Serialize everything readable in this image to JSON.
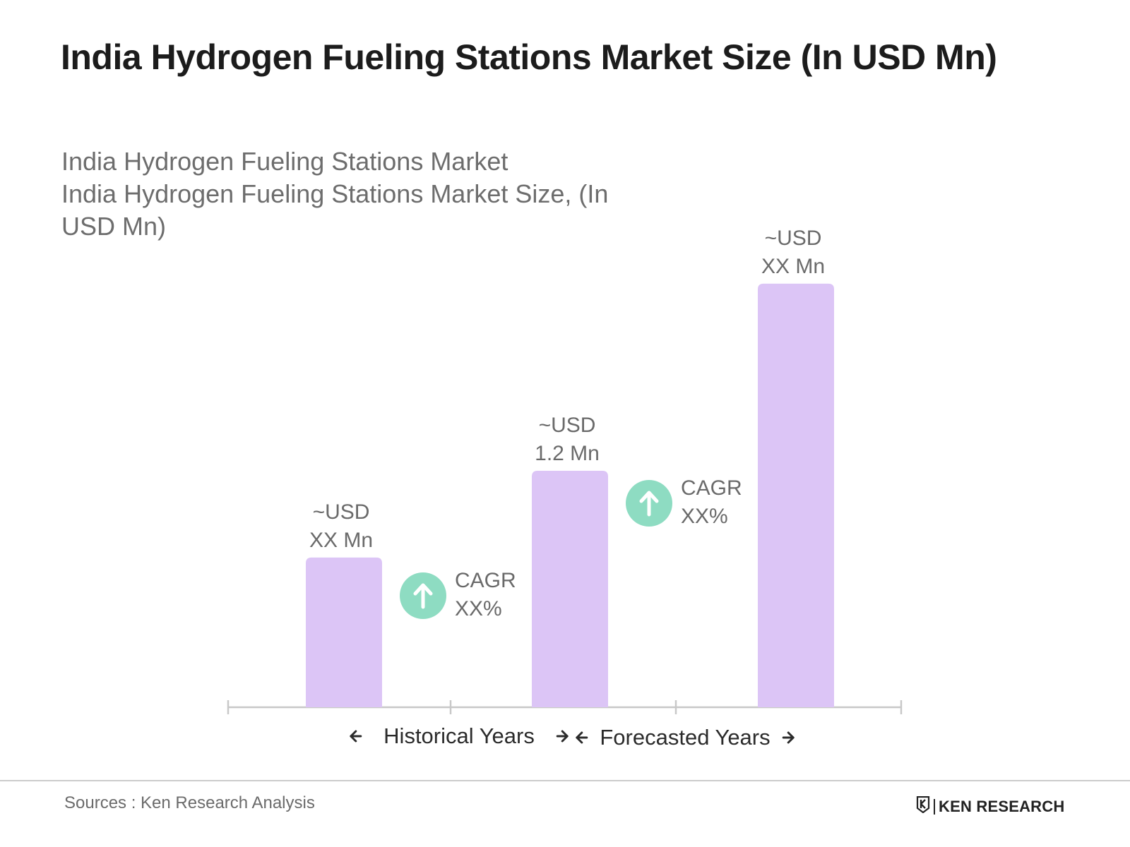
{
  "header": {
    "title": "India Hydrogen Fueling Stations Market Size (In USD Mn)",
    "subtitle_line1": "India Hydrogen Fueling Stations Market",
    "subtitle_line2": "India Hydrogen Fueling Stations Market Size, (In USD Mn)"
  },
  "chart_data": {
    "type": "bar",
    "categories": [
      "",
      "",
      ""
    ],
    "values": [
      0.76,
      1.2,
      2.15
    ],
    "value_labels": [
      [
        "~USD",
        "XX Mn"
      ],
      [
        "~USD",
        "1.2 Mn"
      ],
      [
        "~USD",
        "XX Mn"
      ]
    ],
    "cagr_labels": [
      [
        "CAGR",
        "XX%"
      ],
      [
        "CAGR",
        "XX%"
      ]
    ],
    "period_labels": [
      "Historical Years",
      "Forecasted Years"
    ],
    "ylim": [
      0,
      2.3
    ],
    "grid": false,
    "colors": {
      "bar": "#dcc5f6",
      "cagr_circle": "#8edcc2",
      "axis": "#c8c8c8",
      "label": "#6a6a6a",
      "period_text": "#2b2b2b"
    }
  },
  "footer": {
    "source": "Sources : Ken Research Analysis",
    "brand_name": "KEN RESEARCH",
    "logo_icon": "ken-research-logo-icon"
  }
}
